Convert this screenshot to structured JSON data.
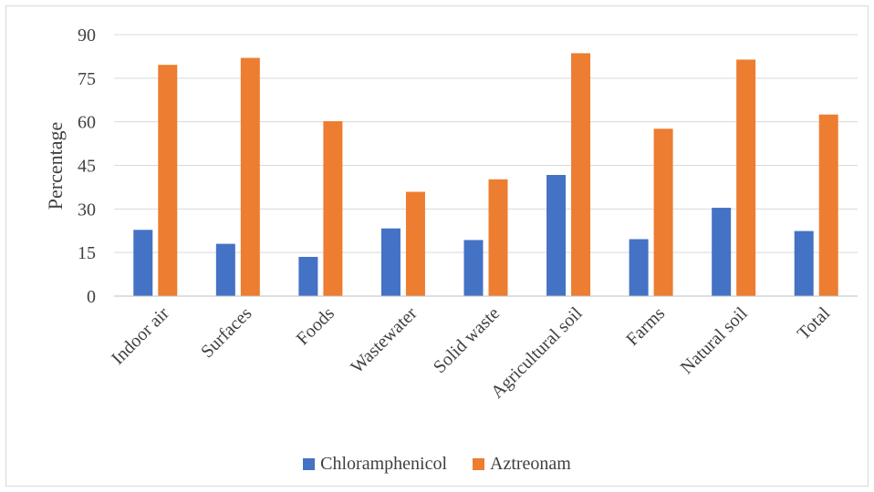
{
  "chart_data": {
    "type": "bar",
    "title": "",
    "xlabel": "",
    "ylabel": "Percentage",
    "ylim": [
      0,
      90
    ],
    "yticks": [
      0,
      15,
      30,
      45,
      60,
      75,
      90
    ],
    "grid": true,
    "legend_position": "bottom",
    "categories": [
      "Indoor air",
      "Surfaces",
      "Foods",
      "Wastewater",
      "Solid waste",
      "Agricultural soil",
      "Farms",
      "Natural soil",
      "Total"
    ],
    "series": [
      {
        "name": "Chloramphenicol",
        "color": "#4472c4",
        "values": [
          22.8,
          18.0,
          13.5,
          23.3,
          19.3,
          41.7,
          19.6,
          30.4,
          22.4
        ]
      },
      {
        "name": "Aztreonam",
        "color": "#ed7d31",
        "values": [
          79.6,
          82.0,
          60.2,
          35.9,
          40.2,
          83.6,
          57.6,
          81.4,
          62.5
        ]
      }
    ]
  }
}
